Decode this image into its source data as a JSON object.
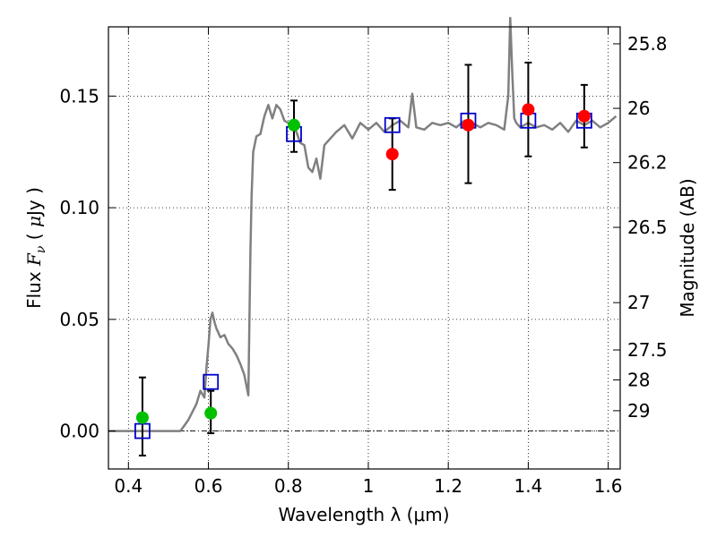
{
  "chart_data": {
    "type": "scatter",
    "title": "",
    "xlabel": "Wavelength  λ (μm)",
    "ylabel": "Flux  F_ν  ( μJy )",
    "ylabel_parts": [
      "Flux  ",
      "F",
      "ν",
      "  (  ",
      "μ",
      "Jy )"
    ],
    "y2label": "Magnitude (AB)",
    "xlim": [
      0.35,
      1.63
    ],
    "ylim": [
      -0.017,
      0.181
    ],
    "xticks": [
      0.4,
      0.6,
      0.8,
      1.0,
      1.2,
      1.4,
      1.6
    ],
    "xtick_labels": [
      "0.4",
      "0.6",
      "0.8",
      "1",
      "1.2",
      "1.4",
      "1.6"
    ],
    "yticks": [
      0.0,
      0.05,
      0.1,
      0.15
    ],
    "ytick_labels": [
      "0.00",
      "0.05",
      "0.10",
      "0.15"
    ],
    "y2ticks": [
      {
        "label": "25.8",
        "flux": 0.1734
      },
      {
        "label": "26",
        "flux": 0.1445
      },
      {
        "label": "26.2",
        "flux": 0.1202
      },
      {
        "label": "26.5",
        "flux": 0.0912
      },
      {
        "label": "27",
        "flux": 0.0575
      },
      {
        "label": "27.5",
        "flux": 0.0363
      },
      {
        "label": "28",
        "flux": 0.0229
      },
      {
        "label": "29",
        "flux": 0.0091
      }
    ],
    "grid": true,
    "zero_line": true,
    "colors": {
      "model": "#808080",
      "observed": "#ff0000",
      "observed_green": "#00c000",
      "model_photometry": "#0000cc",
      "errorbar": "#000000"
    },
    "series": [
      {
        "name": "model spectrum",
        "style": "line",
        "x": [
          0.35,
          0.53,
          0.55,
          0.57,
          0.58,
          0.59,
          0.595,
          0.6,
          0.605,
          0.61,
          0.615,
          0.62,
          0.63,
          0.64,
          0.65,
          0.66,
          0.67,
          0.68,
          0.69,
          0.7,
          0.705,
          0.708,
          0.712,
          0.72,
          0.73,
          0.74,
          0.75,
          0.76,
          0.77,
          0.78,
          0.79,
          0.8,
          0.81,
          0.82,
          0.83,
          0.84,
          0.85,
          0.86,
          0.87,
          0.88,
          0.89,
          0.9,
          0.92,
          0.94,
          0.96,
          0.98,
          1.0,
          1.02,
          1.04,
          1.06,
          1.08,
          1.1,
          1.11,
          1.12,
          1.14,
          1.16,
          1.18,
          1.2,
          1.22,
          1.24,
          1.26,
          1.28,
          1.3,
          1.32,
          1.34,
          1.35,
          1.355,
          1.36,
          1.365,
          1.37,
          1.38,
          1.4,
          1.42,
          1.44,
          1.46,
          1.48,
          1.5,
          1.52,
          1.54,
          1.56,
          1.58,
          1.6,
          1.62
        ],
        "y": [
          0.0,
          0.0,
          0.005,
          0.012,
          0.018,
          0.015,
          0.028,
          0.038,
          0.05,
          0.053,
          0.049,
          0.046,
          0.042,
          0.043,
          0.039,
          0.037,
          0.034,
          0.03,
          0.025,
          0.016,
          0.08,
          0.105,
          0.125,
          0.132,
          0.133,
          0.141,
          0.146,
          0.14,
          0.146,
          0.144,
          0.139,
          0.138,
          0.136,
          0.134,
          0.129,
          0.128,
          0.118,
          0.116,
          0.122,
          0.113,
          0.128,
          0.13,
          0.134,
          0.137,
          0.131,
          0.138,
          0.135,
          0.138,
          0.134,
          0.137,
          0.139,
          0.136,
          0.151,
          0.136,
          0.135,
          0.138,
          0.137,
          0.138,
          0.136,
          0.139,
          0.138,
          0.136,
          0.138,
          0.137,
          0.135,
          0.15,
          0.185,
          0.16,
          0.14,
          0.138,
          0.136,
          0.138,
          0.136,
          0.137,
          0.135,
          0.138,
          0.134,
          0.139,
          0.137,
          0.139,
          0.136,
          0.138,
          0.141
        ]
      },
      {
        "name": "observed photometry",
        "style": "circle",
        "x": [
          0.435,
          0.606,
          0.814,
          1.06,
          1.25,
          1.4,
          1.54
        ],
        "y": [
          0.006,
          0.008,
          0.137,
          0.124,
          0.137,
          0.144,
          0.141
        ],
        "yerr_low": [
          0.017,
          0.009,
          0.012,
          0.016,
          0.026,
          0.021,
          0.014
        ],
        "yerr_high": [
          0.018,
          0.01,
          0.011,
          0.016,
          0.027,
          0.021,
          0.014
        ],
        "colors": [
          "#00c000",
          "#00c000",
          "#00c000",
          "#ff0000",
          "#ff0000",
          "#ff0000",
          "#ff0000"
        ]
      },
      {
        "name": "model photometry",
        "style": "open-square",
        "x": [
          0.435,
          0.606,
          0.814,
          1.06,
          1.25,
          1.4,
          1.54
        ],
        "y": [
          0.0,
          0.022,
          0.133,
          0.137,
          0.139,
          0.139,
          0.139
        ]
      }
    ]
  }
}
